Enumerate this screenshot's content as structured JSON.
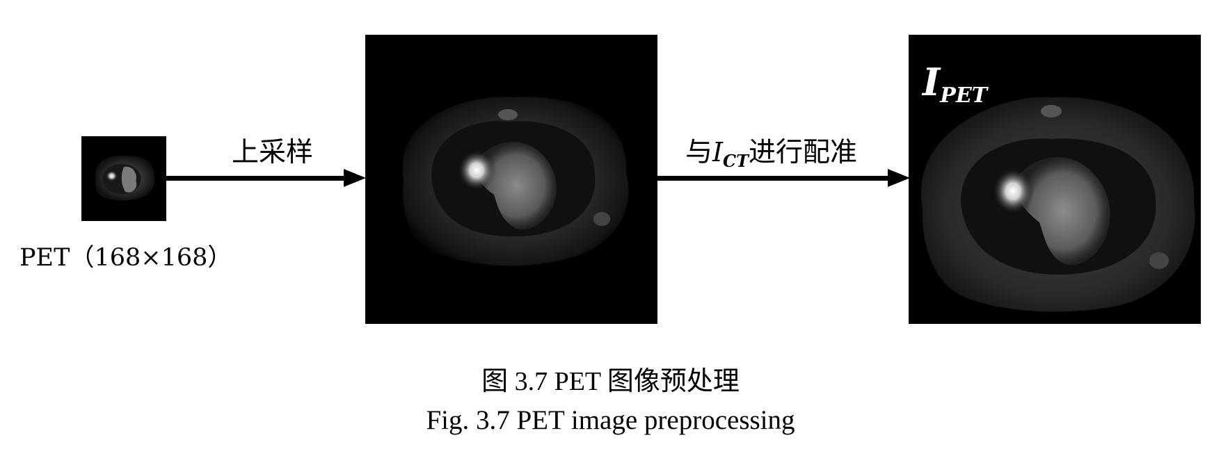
{
  "figure": {
    "small_scan_label": "PET（168×168）",
    "upsample_label": "上采样",
    "register_label": {
      "prefix": "与",
      "symbol": "I",
      "subscript": "CT",
      "suffix": "进行配准"
    },
    "output_label": {
      "symbol": "I",
      "subscript": "PET"
    }
  },
  "caption": {
    "chinese": "图 3.7 PET 图像预处理",
    "english": "Fig. 3.7 PET image preprocessing"
  }
}
